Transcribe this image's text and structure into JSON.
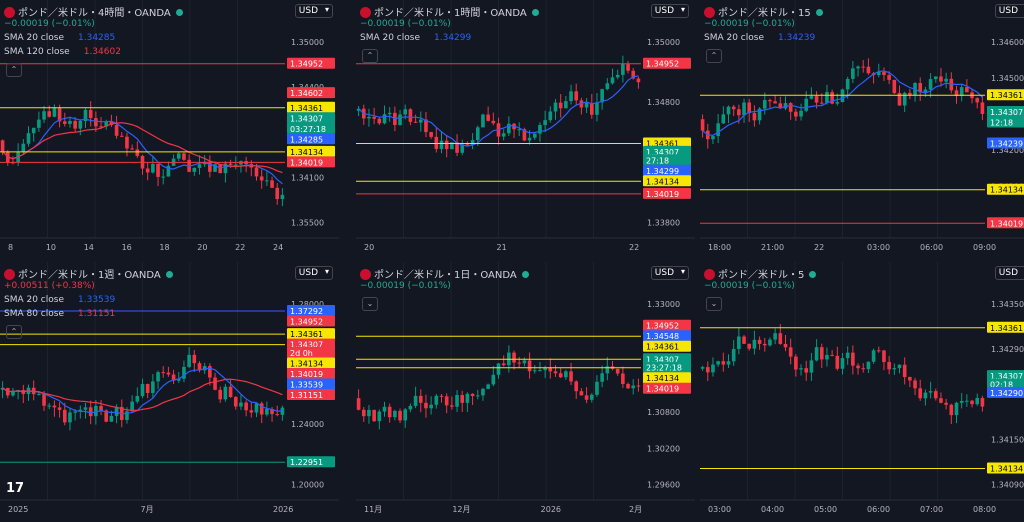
{
  "tabs": [],
  "chart_data": [
    {
      "type": "candlestick",
      "title": "ポンド／米ドル・4時間・OANDA",
      "change": "−0.00019 (−0.01%)",
      "change_dir": "neg",
      "currency": "USD",
      "indicators": [
        {
          "name": "SMA 20 close",
          "value": "1.34285",
          "color": "#2962ff"
        },
        {
          "name": "SMA 120 close",
          "value": "1.34602",
          "color": "#f23645"
        }
      ],
      "ylim": [
        1.349,
        1.3512
      ],
      "yticks": [
        "1.35000",
        "1.34400",
        "1.34200",
        "1.34100",
        "1.35500"
      ],
      "xticks": [
        "8",
        "10",
        "14",
        "16",
        "18",
        "20",
        "22",
        "24"
      ],
      "hlines": [
        {
          "value": "1.34952",
          "color": "#f23645"
        },
        {
          "value": "1.34361",
          "color": "#f7e600"
        },
        {
          "value": "1.34134",
          "color": "#f7e600"
        },
        {
          "value": "1.34019",
          "color": "#f23645"
        }
      ],
      "price_labels": [
        {
          "text": "1.34952",
          "color": "#f23645"
        },
        {
          "text": "1.34602",
          "color": "#f23645"
        },
        {
          "text": "1.34361",
          "color": "#f7e600"
        },
        {
          "text": "1.34307",
          "color": "#089981"
        },
        {
          "text": "03:27:18",
          "color": "#089981"
        },
        {
          "text": "1.34285",
          "color": "#2962ff"
        },
        {
          "text": "1.34134",
          "color": "#f7e600"
        },
        {
          "text": "1.34019",
          "color": "#f23645"
        }
      ]
    },
    {
      "type": "candlestick",
      "title": "ポンド／米ドル・1時間・OANDA",
      "change": "−0.00019 (−0.01%)",
      "change_dir": "neg",
      "currency": "USD",
      "indicators": [
        {
          "name": "SMA 20 close",
          "value": "1.34299",
          "color": "#2962ff"
        }
      ],
      "yticks": [
        "1.35000",
        "1.34800",
        "1.34600",
        "1.33800"
      ],
      "xticks": [
        "20",
        "21",
        "22"
      ],
      "price_labels": [
        {
          "text": "1.34952",
          "color": "#f23645"
        },
        {
          "text": "1.34361",
          "color": "#f7e600"
        },
        {
          "text": "1.34307",
          "color": "#089981"
        },
        {
          "text": "27:18",
          "color": "#089981"
        },
        {
          "text": "1.34299",
          "color": "#2962ff"
        },
        {
          "text": "1.34134",
          "color": "#f7e600"
        },
        {
          "text": "1.34019",
          "color": "#f23645"
        }
      ]
    },
    {
      "type": "candlestick",
      "title": "ポンド／米ドル・15",
      "change": "−0.00019 (−0.01%)",
      "change_dir": "neg",
      "currency": "USD",
      "indicators": [
        {
          "name": "SMA 20 close",
          "value": "1.34239",
          "color": "#2962ff"
        }
      ],
      "yticks": [
        "1.34600",
        "1.34500",
        "1.34400",
        "1.34200",
        "1.34100",
        "1.34000"
      ],
      "xticks": [
        "18:00",
        "21:00",
        "22",
        "03:00",
        "06:00",
        "09:00"
      ],
      "price_labels": [
        {
          "text": "1.34361",
          "color": "#f7e600"
        },
        {
          "text": "1.34307",
          "color": "#089981"
        },
        {
          "text": "12:18",
          "color": "#089981"
        },
        {
          "text": "1.34239",
          "color": "#2962ff"
        },
        {
          "text": "1.34134",
          "color": "#f7e600"
        },
        {
          "text": "1.34019",
          "color": "#f23645"
        }
      ]
    },
    {
      "type": "candlestick",
      "title": "ポンド／米ドル・1週・OANDA",
      "change": "+0.00511 (+0.38%)",
      "change_dir": "pos",
      "currency": "USD",
      "indicators": [
        {
          "name": "SMA 20 close",
          "value": "1.33539",
          "color": "#2962ff"
        },
        {
          "name": "SMA 80 close",
          "value": "1.31151",
          "color": "#f23645"
        }
      ],
      "yticks": [
        "1.28000",
        "1.26000",
        "1.24000",
        "1.20000"
      ],
      "xticks": [
        "2025",
        "7月",
        "2026"
      ],
      "price_labels": [
        {
          "text": "1.37292",
          "color": "#2962ff"
        },
        {
          "text": "1.34952",
          "color": "#f23645"
        },
        {
          "text": "1.34361",
          "color": "#f7e600"
        },
        {
          "text": "1.34307",
          "color": "#f23645"
        },
        {
          "text": "2d 0h",
          "color": "#f23645"
        },
        {
          "text": "1.34134",
          "color": "#f7e600"
        },
        {
          "text": "1.34019",
          "color": "#f23645"
        },
        {
          "text": "1.33539",
          "color": "#2962ff"
        },
        {
          "text": "1.31151",
          "color": "#f23645"
        },
        {
          "text": "1.22951",
          "color": "#089981"
        }
      ],
      "logo": "17"
    },
    {
      "type": "candlestick",
      "title": "ポンド／米ドル・1日・OANDA",
      "change": "−0.00019 (−0.01%)",
      "change_dir": "neg",
      "currency": "USD",
      "yticks": [
        "1.33000",
        "1.32000",
        "1.31400",
        "1.30800",
        "1.30200",
        "1.29600"
      ],
      "xticks": [
        "11月",
        "12月",
        "2026",
        "2月"
      ],
      "price_labels": [
        {
          "text": "1.34952",
          "color": "#f23645"
        },
        {
          "text": "1.34548",
          "color": "#2962ff"
        },
        {
          "text": "1.34361",
          "color": "#f7e600"
        },
        {
          "text": "1.34307",
          "color": "#089981"
        },
        {
          "text": "23:27:18",
          "color": "#089981"
        },
        {
          "text": "1.34134",
          "color": "#f7e600"
        },
        {
          "text": "1.34019",
          "color": "#f23645"
        }
      ]
    },
    {
      "type": "candlestick",
      "title": "ポンド／米ドル・5",
      "change": "−0.00019 (−0.01%)",
      "change_dir": "neg",
      "currency": "USD",
      "yticks": [
        "1.34350",
        "1.34290",
        "1.34220",
        "1.34150",
        "1.34090"
      ],
      "xticks": [
        "03:00",
        "04:00",
        "05:00",
        "06:00",
        "07:00",
        "08:00"
      ],
      "price_labels": [
        {
          "text": "1.34361",
          "color": "#f7e600"
        },
        {
          "text": "1.34307",
          "color": "#089981"
        },
        {
          "text": "02:18",
          "color": "#089981"
        },
        {
          "text": "1.34290",
          "color": "#2962ff"
        },
        {
          "text": "1.34134",
          "color": "#f7e600"
        }
      ]
    }
  ]
}
